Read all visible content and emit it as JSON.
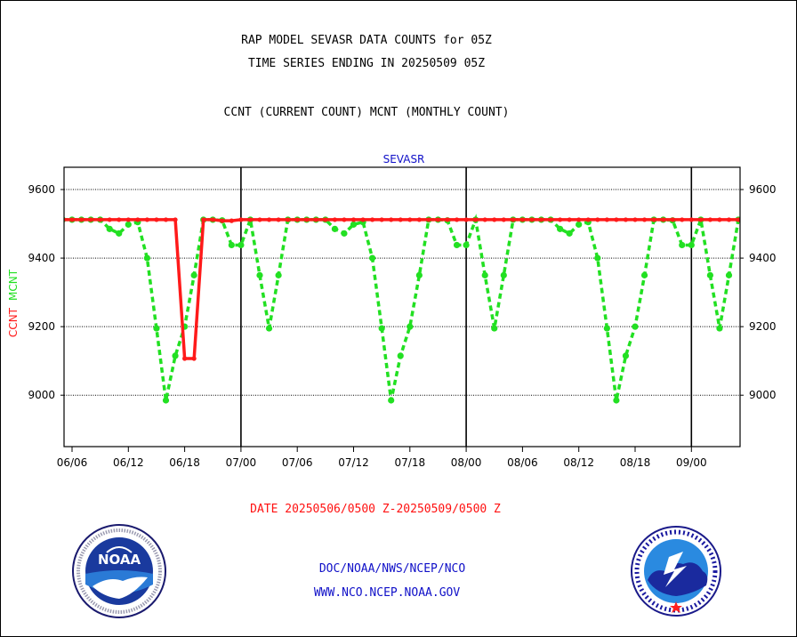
{
  "header": {
    "line1": "RAP MODEL SEVASR DATA COUNTS for 05Z",
    "line2": "TIME SERIES ENDING IN 20250509 05Z",
    "line3": "CCNT (CURRENT COUNT) MCNT (MONTHLY COUNT)"
  },
  "footer": {
    "date_range": "DATE 20250506/0500 Z-20250509/0500 Z",
    "org_path": "DOC/NOAA/NWS/NCEP/NCO",
    "website": "WWW.NCO.NCEP.NOAA.GOV"
  },
  "logos": {
    "noaa_label": "NOAA"
  },
  "colors": {
    "ccnt": "#ff1a1a",
    "mcnt": "#22e022",
    "title_blue": "#1010c8"
  },
  "chart_data": {
    "type": "line",
    "title": "SEVASR",
    "ylabel_left": [
      "CCNT",
      "MCNT"
    ],
    "yticks": [
      "9600",
      "9400",
      "9200",
      "9000"
    ],
    "ytick_values": [
      9600,
      9400,
      9200,
      9000
    ],
    "ylim": [
      8850,
      9665
    ],
    "xlim": [
      -0.5,
      72.5
    ],
    "x_unit": "hour index (6-hourly steps, 06/06 to 09/00)",
    "xticks": [
      "06/06",
      "06/12",
      "06/18",
      "07/00",
      "07/06",
      "07/12",
      "07/18",
      "08/00",
      "08/06",
      "08/12",
      "08/18",
      "09/00"
    ],
    "xtick_positions": [
      0,
      6,
      12,
      18,
      24,
      30,
      36,
      42,
      48,
      54,
      60,
      66
    ],
    "day_boundaries": [
      18,
      42,
      66
    ],
    "grid": true,
    "series": [
      {
        "name": "CCNT",
        "x": [
          -1,
          0,
          1,
          2,
          3,
          4,
          5,
          6,
          7,
          8,
          9,
          10,
          11,
          12,
          13,
          14,
          15,
          16,
          17,
          18,
          19,
          20,
          21,
          22,
          23,
          24,
          25,
          26,
          27,
          28,
          29,
          30,
          31,
          32,
          33,
          34,
          35,
          36,
          37,
          38,
          39,
          40,
          41,
          42,
          43,
          44,
          45,
          46,
          47,
          48,
          49,
          50,
          51,
          52,
          53,
          54,
          55,
          56,
          57,
          58,
          59,
          60,
          61,
          62,
          63,
          64,
          65,
          66,
          67,
          68,
          69,
          70,
          71
        ],
        "values": [
          9512,
          9512,
          9512,
          9512,
          9512,
          9512,
          9512,
          9512,
          9512,
          9512,
          9512,
          9512,
          9512,
          9107,
          9107,
          9512,
          9512,
          9509,
          9509,
          9512,
          9512,
          9512,
          9512,
          9512,
          9512,
          9512,
          9512,
          9512,
          9512,
          9512,
          9512,
          9512,
          9512,
          9512,
          9512,
          9512,
          9512,
          9512,
          9512,
          9512,
          9512,
          9512,
          9512,
          9512,
          9512,
          9512,
          9512,
          9512,
          9512,
          9512,
          9512,
          9512,
          9512,
          9512,
          9512,
          9512,
          9512,
          9512,
          9512,
          9512,
          9512,
          9512,
          9512,
          9512,
          9512,
          9512,
          9512,
          9512,
          9512,
          9512,
          9512,
          9512,
          9512
        ]
      },
      {
        "name": "MCNT",
        "x": [
          -1,
          0,
          1,
          2,
          3,
          4,
          5,
          6,
          7,
          8,
          9,
          10,
          11,
          12,
          13,
          14,
          15,
          16,
          17,
          18,
          19,
          20,
          21,
          22,
          23,
          24,
          25,
          26,
          27,
          28,
          29,
          30,
          31,
          32,
          33,
          34,
          35,
          36,
          37,
          38,
          39,
          40,
          41,
          42,
          43,
          44,
          45,
          46,
          47,
          48,
          49,
          50,
          51,
          52,
          53,
          54,
          55,
          56,
          57,
          58,
          59,
          60,
          61,
          62,
          63,
          64,
          65,
          66,
          67,
          68,
          69,
          70,
          71
        ],
        "values": [
          9512,
          9512,
          9512,
          9512,
          9512,
          9485,
          9472,
          9498,
          9505,
          9400,
          9195,
          8985,
          9115,
          9200,
          9350,
          9512,
          9512,
          9510,
          9438,
          9438,
          9512,
          9350,
          9195,
          9350,
          9512,
          9512,
          9512,
          9512,
          9512,
          9485,
          9472,
          9498,
          9505,
          9400,
          9195,
          8985,
          9115,
          9200,
          9350,
          9512,
          9512,
          9510,
          9438,
          9438,
          9512,
          9350,
          9195,
          9350,
          9512,
          9512,
          9512,
          9512,
          9512,
          9485,
          9472,
          9498,
          9505,
          9400,
          9195,
          8985,
          9115,
          9200,
          9350,
          9512,
          9512,
          9510,
          9438,
          9438,
          9512,
          9350,
          9195,
          9350,
          9512
        ]
      }
    ]
  }
}
